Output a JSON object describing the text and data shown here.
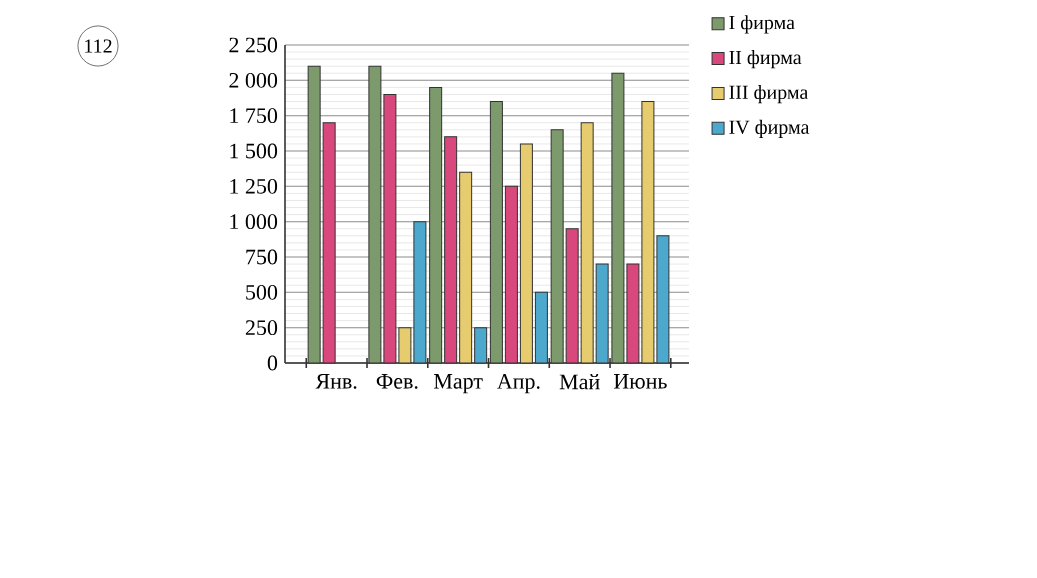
{
  "chart_data": {
    "type": "bar",
    "categories": [
      "Янв.",
      "Фев.",
      "Март",
      "Апр.",
      "Май",
      "Июнь"
    ],
    "series": [
      {
        "name": "I фирма",
        "color": "#7c9a6c",
        "values": [
          2100,
          2100,
          1950,
          1850,
          1650,
          2050
        ]
      },
      {
        "name": "II фирма",
        "color": "#d8487c",
        "values": [
          1700,
          1900,
          1600,
          1250,
          950,
          700
        ]
      },
      {
        "name": "III фирма",
        "color": "#e6cc6e",
        "values": [
          null,
          250,
          1350,
          1550,
          1700,
          1850
        ]
      },
      {
        "name": "IV фирма",
        "color": "#4ca8cc",
        "values": [
          null,
          1000,
          250,
          500,
          700,
          900
        ]
      }
    ],
    "ylim": [
      0,
      2250
    ],
    "yticks": [
      0,
      250,
      500,
      750,
      {
        "value": 1000,
        "label": "1 000"
      },
      {
        "value": 1250,
        "label": "1 250"
      },
      {
        "value": 1500,
        "label": "1 500"
      },
      {
        "value": 1750,
        "label": "1 750"
      },
      {
        "value": 2000,
        "label": "2 000"
      },
      {
        "value": 2250,
        "label": "2 250"
      }
    ],
    "grid": "y",
    "legend": "top right",
    "annotations": [
      "112"
    ]
  }
}
